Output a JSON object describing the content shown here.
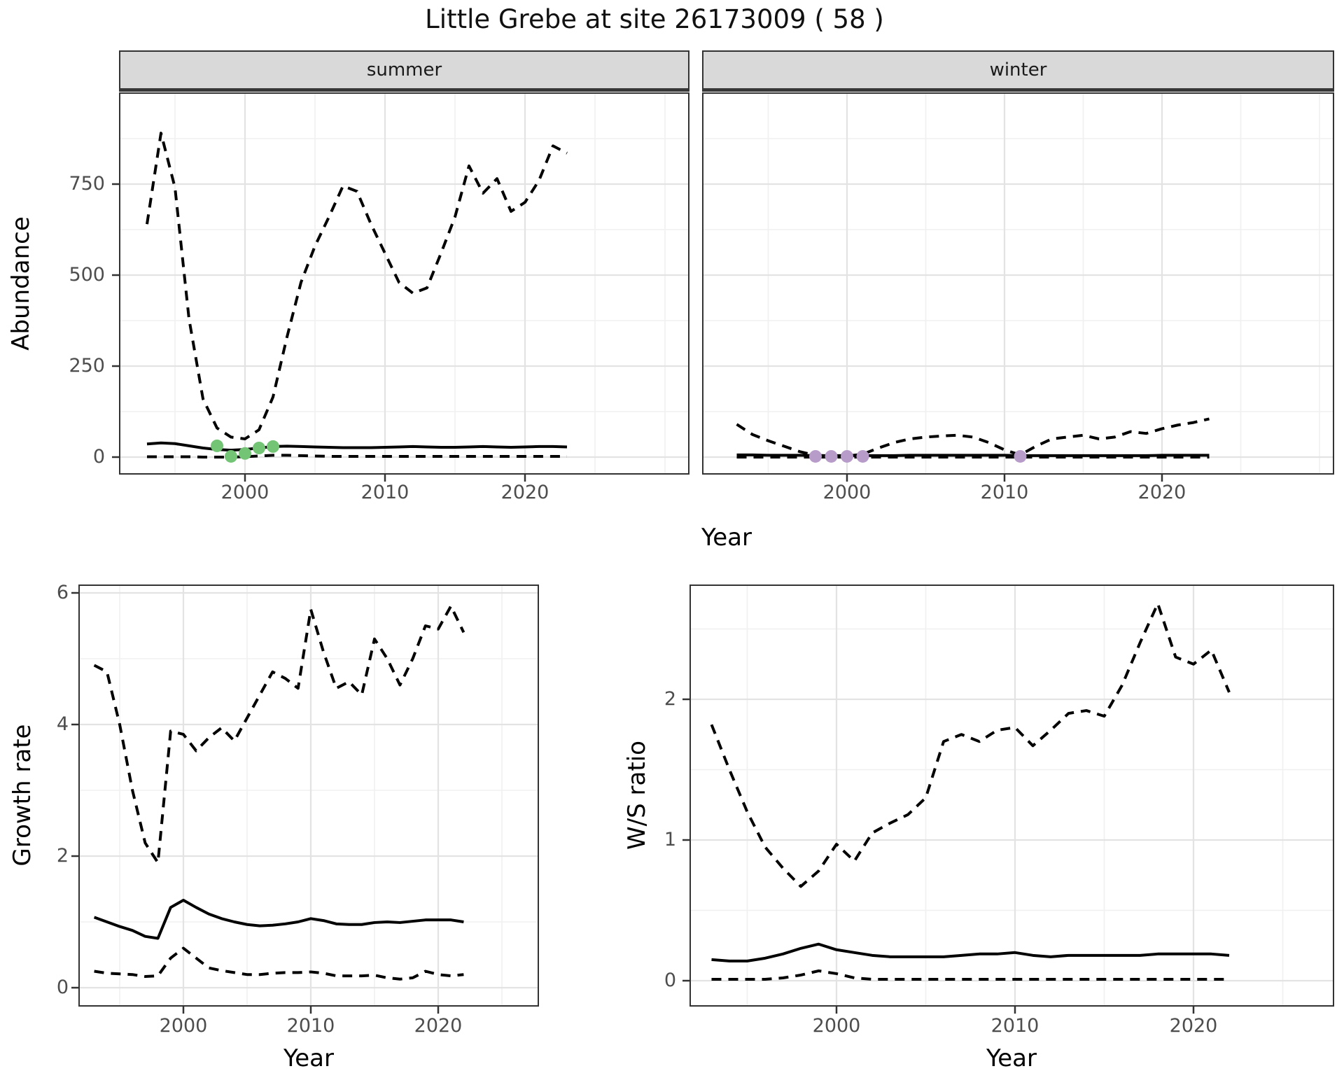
{
  "title": "Little Grebe at site 26173009 ( 58 )",
  "colors": {
    "summer_points": "#74C476",
    "winter_points": "#B79BC9",
    "line": "#000000",
    "strip_background": "#D9D9D9",
    "panel_border": "#333333",
    "grid_major": "#E3E3E3",
    "grid_minor": "#F0F0F0",
    "tick_text": "#4D4D4D"
  },
  "chart_data": [
    {
      "type": "line",
      "panel": "abundance-summer",
      "strip_label": "summer",
      "xlabel": "Year",
      "ylabel": "Abundance",
      "xlim": [
        1991,
        2031
      ],
      "ylim": [
        0,
        1000
      ],
      "grid": "on",
      "legend": "none",
      "x_ticks": {
        "values": [
          2000,
          2010,
          2020
        ],
        "labels": [
          "2000",
          "2010",
          "2020"
        ]
      },
      "y_ticks": {
        "values": [
          0,
          250,
          500,
          750
        ],
        "labels": [
          "0",
          "250",
          "500",
          "750"
        ]
      },
      "years": [
        1993,
        1994,
        1995,
        1996,
        1997,
        1998,
        1999,
        2000,
        2001,
        2002,
        2003,
        2004,
        2005,
        2006,
        2007,
        2008,
        2009,
        2010,
        2011,
        2012,
        2013,
        2014,
        2015,
        2016,
        2017,
        2018,
        2019,
        2020,
        2021,
        2022,
        2023
      ],
      "series": [
        {
          "name": "estimate",
          "style": "solid",
          "values": [
            36,
            39,
            37,
            31,
            25,
            21,
            19,
            21,
            25,
            29,
            30,
            29,
            28,
            27,
            26,
            26,
            26,
            27,
            28,
            29,
            28,
            27,
            27,
            28,
            29,
            28,
            27,
            28,
            29,
            29,
            28
          ]
        },
        {
          "name": "lower_ci",
          "style": "dashed",
          "values": [
            1,
            1,
            1,
            1,
            0,
            0,
            0,
            1,
            3,
            5,
            5,
            4,
            3,
            2,
            2,
            2,
            2,
            2,
            2,
            2,
            2,
            2,
            2,
            2,
            2,
            2,
            2,
            2,
            2,
            2,
            2
          ]
        },
        {
          "name": "upper_ci",
          "style": "dashed",
          "values": [
            640,
            890,
            740,
            380,
            160,
            80,
            55,
            50,
            75,
            165,
            330,
            480,
            580,
            660,
            745,
            730,
            640,
            560,
            480,
            450,
            465,
            560,
            660,
            800,
            725,
            765,
            675,
            700,
            760,
            855,
            835
          ]
        }
      ],
      "observed_points": {
        "color": "#74C476",
        "years": [
          1998,
          1999,
          2000,
          2001,
          2002
        ],
        "values": [
          31,
          2,
          10,
          25,
          29
        ]
      }
    },
    {
      "type": "line",
      "panel": "abundance-winter",
      "strip_label": "winter",
      "xlabel": "Year",
      "ylabel": "Abundance",
      "xlim": [
        1991,
        2031
      ],
      "ylim": [
        0,
        1000
      ],
      "grid": "on",
      "legend": "none",
      "x_ticks": {
        "values": [
          2000,
          2010,
          2020
        ],
        "labels": [
          "2000",
          "2010",
          "2020"
        ]
      },
      "y_ticks": {
        "values": [
          0,
          250,
          500,
          750
        ],
        "labels": [
          "0",
          "250",
          "500",
          "750"
        ]
      },
      "years": [
        1993,
        1994,
        1995,
        1996,
        1997,
        1998,
        1999,
        2000,
        2001,
        2002,
        2003,
        2004,
        2005,
        2006,
        2007,
        2008,
        2009,
        2010,
        2011,
        2012,
        2013,
        2014,
        2015,
        2016,
        2017,
        2018,
        2019,
        2020,
        2021,
        2022,
        2023
      ],
      "series": [
        {
          "name": "estimate",
          "style": "solid",
          "values": [
            6,
            6,
            5,
            5,
            5,
            4,
            4,
            4,
            4,
            4,
            4,
            5,
            5,
            5,
            5,
            5,
            5,
            5,
            4,
            4,
            4,
            4,
            4,
            4,
            4,
            4,
            4,
            5,
            5,
            5,
            5
          ]
        },
        {
          "name": "lower_ci",
          "style": "dashed",
          "values": [
            0,
            0,
            0,
            0,
            0,
            0,
            0,
            0,
            0,
            0,
            0,
            0,
            0,
            0,
            0,
            0,
            0,
            0,
            0,
            0,
            0,
            0,
            0,
            0,
            0,
            0,
            0,
            0,
            0,
            0,
            0
          ]
        },
        {
          "name": "upper_ci",
          "style": "dashed",
          "values": [
            90,
            62,
            45,
            30,
            15,
            5,
            3,
            3,
            8,
            25,
            40,
            50,
            55,
            58,
            60,
            55,
            40,
            20,
            6,
            30,
            50,
            55,
            60,
            50,
            55,
            70,
            65,
            78,
            88,
            95,
            105
          ]
        }
      ],
      "observed_points": {
        "color": "#B79BC9",
        "years": [
          1998,
          1999,
          2000,
          2001,
          2011
        ],
        "values": [
          2,
          2,
          2,
          2,
          2
        ]
      }
    },
    {
      "type": "line",
      "panel": "growth-rate",
      "strip_label": "",
      "xlabel": "Year",
      "ylabel": "Growth rate",
      "xlim": [
        1991,
        2028
      ],
      "ylim": [
        0,
        6
      ],
      "grid": "on",
      "legend": "none",
      "x_ticks": {
        "values": [
          2000,
          2010,
          2020
        ],
        "labels": [
          "2000",
          "2010",
          "2020"
        ]
      },
      "y_ticks": {
        "values": [
          0,
          2,
          4,
          6
        ],
        "labels": [
          "0",
          "2",
          "4",
          "6"
        ]
      },
      "years": [
        1993,
        1994,
        1995,
        1996,
        1997,
        1998,
        1999,
        2000,
        2001,
        2002,
        2003,
        2004,
        2005,
        2006,
        2007,
        2008,
        2009,
        2010,
        2011,
        2012,
        2013,
        2014,
        2015,
        2016,
        2017,
        2018,
        2019,
        2020,
        2021,
        2022
      ],
      "series": [
        {
          "name": "estimate",
          "style": "solid",
          "values": [
            1.07,
            1.0,
            0.93,
            0.87,
            0.78,
            0.75,
            1.22,
            1.33,
            1.22,
            1.12,
            1.05,
            1.0,
            0.96,
            0.94,
            0.95,
            0.97,
            1.0,
            1.05,
            1.02,
            0.97,
            0.96,
            0.96,
            0.99,
            1.0,
            0.99,
            1.01,
            1.03,
            1.03,
            1.03,
            1.0
          ]
        },
        {
          "name": "lower_ci",
          "style": "dashed",
          "values": [
            0.25,
            0.22,
            0.21,
            0.2,
            0.17,
            0.18,
            0.45,
            0.6,
            0.45,
            0.3,
            0.26,
            0.23,
            0.2,
            0.2,
            0.22,
            0.23,
            0.23,
            0.24,
            0.22,
            0.18,
            0.18,
            0.18,
            0.19,
            0.15,
            0.13,
            0.15,
            0.25,
            0.2,
            0.18,
            0.2
          ]
        },
        {
          "name": "upper_ci",
          "style": "dashed",
          "values": [
            4.9,
            4.8,
            4.0,
            3.0,
            2.2,
            1.9,
            3.9,
            3.85,
            3.6,
            3.8,
            3.95,
            3.75,
            4.1,
            4.45,
            4.8,
            4.7,
            4.55,
            5.75,
            5.1,
            4.55,
            4.65,
            4.45,
            5.3,
            5.0,
            4.6,
            5.0,
            5.5,
            5.45,
            5.8,
            5.4
          ]
        }
      ],
      "observed_points": {
        "color": "",
        "years": [],
        "values": []
      }
    },
    {
      "type": "line",
      "panel": "ws-ratio",
      "strip_label": "",
      "xlabel": "Year",
      "ylabel": "W/S ratio",
      "xlim": [
        1991,
        2028
      ],
      "ylim": [
        0,
        2.8
      ],
      "grid": "on",
      "legend": "none",
      "x_ticks": {
        "values": [
          2000,
          2010,
          2020
        ],
        "labels": [
          "2000",
          "2010",
          "2020"
        ]
      },
      "y_ticks": {
        "values": [
          0,
          1,
          2
        ],
        "labels": [
          "0",
          "1",
          "2"
        ]
      },
      "years": [
        1993,
        1994,
        1995,
        1996,
        1997,
        1998,
        1999,
        2000,
        2001,
        2002,
        2003,
        2004,
        2005,
        2006,
        2007,
        2008,
        2009,
        2010,
        2011,
        2012,
        2013,
        2014,
        2015,
        2016,
        2017,
        2018,
        2019,
        2020,
        2021,
        2022
      ],
      "series": [
        {
          "name": "estimate",
          "style": "solid",
          "values": [
            0.15,
            0.14,
            0.14,
            0.16,
            0.19,
            0.23,
            0.26,
            0.22,
            0.2,
            0.18,
            0.17,
            0.17,
            0.17,
            0.17,
            0.18,
            0.19,
            0.19,
            0.2,
            0.18,
            0.17,
            0.18,
            0.18,
            0.18,
            0.18,
            0.18,
            0.19,
            0.19,
            0.19,
            0.19,
            0.18
          ]
        },
        {
          "name": "lower_ci",
          "style": "dashed",
          "values": [
            0.01,
            0.01,
            0.01,
            0.01,
            0.02,
            0.04,
            0.07,
            0.05,
            0.02,
            0.01,
            0.01,
            0.01,
            0.01,
            0.01,
            0.01,
            0.01,
            0.01,
            0.01,
            0.01,
            0.01,
            0.01,
            0.01,
            0.01,
            0.01,
            0.01,
            0.01,
            0.01,
            0.01,
            0.01,
            0.01
          ]
        },
        {
          "name": "upper_ci",
          "style": "dashed",
          "values": [
            1.82,
            1.5,
            1.2,
            0.95,
            0.8,
            0.67,
            0.78,
            0.97,
            0.85,
            1.05,
            1.12,
            1.18,
            1.3,
            1.7,
            1.75,
            1.7,
            1.78,
            1.8,
            1.67,
            1.78,
            1.9,
            1.92,
            1.88,
            2.1,
            2.4,
            2.68,
            2.3,
            2.25,
            2.35,
            2.05
          ]
        }
      ],
      "observed_points": {
        "color": "",
        "years": [],
        "values": []
      }
    }
  ]
}
